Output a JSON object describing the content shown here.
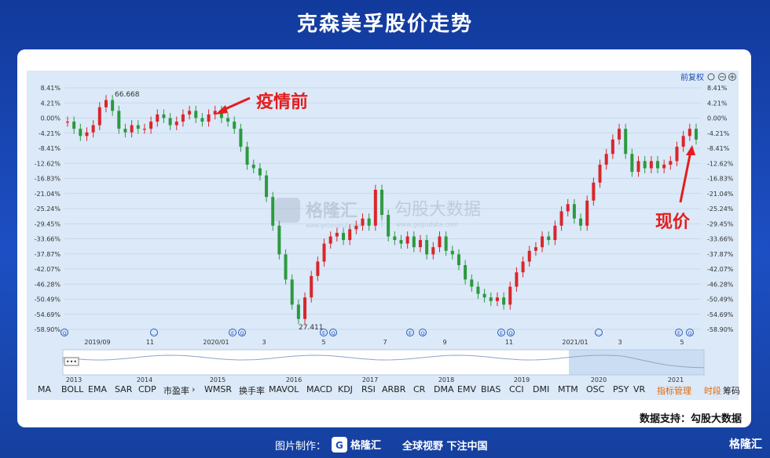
{
  "header": {
    "title": "克森美孚股价走势"
  },
  "chart_toolbar": {
    "adjust_label": "前复权"
  },
  "chart_data": {
    "type": "candlestick",
    "title": "克森美孚股价走势",
    "y_ticks": [
      "8.41%",
      "4.21%",
      "0.00%",
      "-4.21%",
      "-8.41%",
      "-12.62%",
      "-16.83%",
      "-21.04%",
      "-25.24%",
      "-29.45%",
      "-33.66%",
      "-37.87%",
      "-42.07%",
      "-46.28%",
      "-50.49%",
      "-54.69%",
      "-58.90%"
    ],
    "ylim": [
      -58.9,
      8.41
    ],
    "x_ticks": [
      "2019/09",
      "11",
      "2020/01",
      "3",
      "5",
      "7",
      "9",
      "11",
      "2021/01",
      "3",
      "5"
    ],
    "series": [
      {
        "values": [
          -1,
          -3,
          -5,
          -4,
          -2,
          3,
          5,
          2,
          -3,
          -4,
          -2,
          -3,
          -3,
          -1,
          1,
          0,
          -2,
          -1,
          1,
          2,
          0,
          -1,
          1,
          2,
          0,
          -1,
          -3,
          -8,
          -13,
          -14,
          -16,
          -22,
          -30,
          -38,
          -45,
          -52,
          -56,
          -50,
          -44,
          -40,
          -35,
          -33,
          -32,
          -34,
          -31,
          -30,
          -28,
          -30,
          -20,
          -27,
          -33,
          -34,
          -35,
          -33,
          -36,
          -34,
          -38,
          -36,
          -33,
          -37,
          -38,
          -41,
          -45,
          -47,
          -49,
          -50,
          -51,
          -50,
          -52,
          -47,
          -43,
          -40,
          -37,
          -36,
          -33,
          -34,
          -30,
          -26,
          -24,
          -28,
          -30,
          -23,
          -18,
          -13,
          -10,
          -6,
          -3,
          -10,
          -15,
          -12,
          -14,
          -12,
          -14,
          -13,
          -12,
          -8,
          -5,
          -3,
          -6
        ]
      }
    ],
    "annotations": [
      {
        "text": "66.668",
        "kind": "high"
      },
      {
        "text": "27.411",
        "kind": "low"
      },
      {
        "text": "疫情前",
        "kind": "callout"
      },
      {
        "text": "现价",
        "kind": "callout"
      }
    ],
    "colors": {
      "up": "#d9262b",
      "down": "#2b9a3e",
      "callout": "#e41d1d"
    }
  },
  "navigator": {
    "years": [
      "2013",
      "2014",
      "2015",
      "2016",
      "2017",
      "2018",
      "2019",
      "2020",
      "2021"
    ]
  },
  "indicators": [
    "MA",
    "BOLL",
    "EMA",
    "SAR",
    "CDP",
    "市盈率",
    "WMSR",
    "换手率",
    "MAVOL",
    "MACD",
    "KDJ",
    "RSI",
    "ARBR",
    "CR",
    "DMA",
    "EMV",
    "BIAS",
    "CCI",
    "DMI",
    "MTM",
    "OSC",
    "PSY",
    "VR",
    "指标管理",
    "时段",
    "筹码"
  ],
  "watermark": {
    "brand": "格隆汇",
    "brand_url": "www.gelonghui.com",
    "partner": "勾股大数据",
    "partner_url": "www.gogudata.com"
  },
  "support_text": "数据支持：勾股大数据",
  "footer": {
    "credit": "图片制作：",
    "logo": "格隆汇",
    "slogan": "全球视野 下注中国",
    "corner_logo": "格隆汇"
  }
}
